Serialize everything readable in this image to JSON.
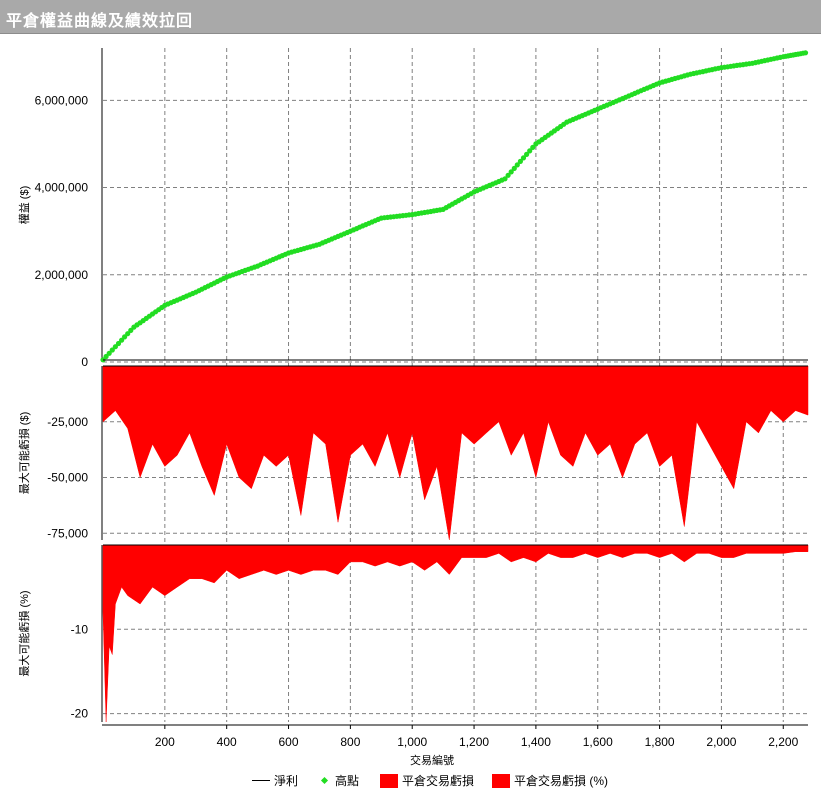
{
  "header": {
    "title": "平倉權益曲線及績效拉回"
  },
  "colors": {
    "highs": "#22dd22",
    "drawdown": "#ff0000",
    "grid": "#808080",
    "title_bg": "#a9a9a9"
  },
  "chart_data": [
    {
      "type": "line",
      "name": "equity",
      "ylabel": "權益 ($)",
      "ylim": [
        0,
        7200000
      ],
      "yticks": [
        "0",
        "2,000,000",
        "4,000,000",
        "6,000,000"
      ],
      "ytick_values": [
        0,
        2000000,
        4000000,
        6000000
      ],
      "series": [
        {
          "name": "淨利",
          "x": [
            0,
            100,
            200,
            300,
            400,
            500,
            600,
            700,
            800,
            900,
            1000,
            1100,
            1200,
            1300,
            1400,
            1500,
            1600,
            1700,
            1800,
            1900,
            2000,
            2100,
            2200,
            2280
          ],
          "values": [
            50000,
            800000,
            1300000,
            1600000,
            1950000,
            2200000,
            2500000,
            2700000,
            3000000,
            3300000,
            3380000,
            3500000,
            3900000,
            4200000,
            5000000,
            5500000,
            5800000,
            6100000,
            6400000,
            6600000,
            6750000,
            6850000,
            7000000,
            7100000
          ]
        },
        {
          "name": "高點"
        }
      ]
    },
    {
      "type": "area",
      "name": "dollar-drawdown",
      "ylabel": "最大可能虧損 ($)",
      "ylim": [
        -78000,
        0
      ],
      "yticks": [
        "-25,000",
        "-50,000",
        "-75,000"
      ],
      "ytick_values": [
        -25000,
        -50000,
        -75000
      ],
      "series": [
        {
          "name": "平倉交易虧損",
          "x": [
            0,
            40,
            80,
            120,
            160,
            200,
            240,
            280,
            320,
            360,
            400,
            440,
            480,
            520,
            560,
            600,
            640,
            680,
            720,
            760,
            800,
            840,
            880,
            920,
            960,
            1000,
            1040,
            1080,
            1120,
            1160,
            1200,
            1240,
            1280,
            1320,
            1360,
            1400,
            1440,
            1480,
            1520,
            1560,
            1600,
            1640,
            1680,
            1720,
            1760,
            1800,
            1840,
            1880,
            1920,
            1960,
            2000,
            2040,
            2080,
            2120,
            2160,
            2200,
            2240,
            2280
          ],
          "values": [
            -25000,
            -20000,
            -28000,
            -50000,
            -35000,
            -45000,
            -40000,
            -30000,
            -45000,
            -58000,
            -35000,
            -50000,
            -55000,
            -40000,
            -45000,
            -40000,
            -67000,
            -30000,
            -35000,
            -70000,
            -40000,
            -35000,
            -45000,
            -30000,
            -50000,
            -30000,
            -60000,
            -45000,
            -78000,
            -30000,
            -35000,
            -30000,
            -25000,
            -40000,
            -30000,
            -50000,
            -25000,
            -40000,
            -45000,
            -30000,
            -40000,
            -35000,
            -50000,
            -35000,
            -30000,
            -45000,
            -40000,
            -72000,
            -25000,
            -35000,
            -45000,
            -55000,
            -25000,
            -30000,
            -20000,
            -25000,
            -20000,
            -22000
          ]
        }
      ]
    },
    {
      "type": "area",
      "name": "percent-drawdown",
      "ylabel": "最大可能虧損 (%)",
      "ylim": [
        -21,
        0
      ],
      "yticks": [
        "-10",
        "-20"
      ],
      "ytick_values": [
        -10,
        -20
      ],
      "xlabel": "交易編號",
      "xlim": [
        0,
        2280
      ],
      "xticks": [
        "200",
        "400",
        "600",
        "800",
        "1,000",
        "1,200",
        "1,400",
        "1,600",
        "1,800",
        "2,000",
        "2,200"
      ],
      "xtick_values": [
        200,
        400,
        600,
        800,
        1000,
        1200,
        1400,
        1600,
        1800,
        2000,
        2200
      ],
      "series": [
        {
          "name": "平倉交易虧損 (%)",
          "x": [
            0,
            10,
            20,
            30,
            40,
            60,
            80,
            120,
            160,
            200,
            240,
            280,
            320,
            360,
            400,
            440,
            480,
            520,
            560,
            600,
            640,
            680,
            720,
            760,
            800,
            840,
            880,
            920,
            960,
            1000,
            1040,
            1080,
            1120,
            1160,
            1200,
            1240,
            1280,
            1320,
            1360,
            1400,
            1440,
            1480,
            1520,
            1560,
            1600,
            1640,
            1680,
            1720,
            1760,
            1800,
            1840,
            1880,
            1920,
            1960,
            2000,
            2040,
            2080,
            2120,
            2160,
            2200,
            2240,
            2280
          ],
          "values": [
            -8,
            -21,
            -12,
            -13,
            -7,
            -5,
            -6,
            -7,
            -5,
            -6,
            -5,
            -4,
            -4,
            -4.5,
            -3,
            -4,
            -3.5,
            -3,
            -3.5,
            -3,
            -3.5,
            -3,
            -3,
            -3.5,
            -2,
            -2,
            -2.5,
            -2,
            -2.5,
            -2,
            -3,
            -2,
            -3.5,
            -1.5,
            -1.5,
            -1.5,
            -1,
            -2,
            -1.5,
            -2,
            -1,
            -1.5,
            -1.5,
            -1,
            -1.5,
            -1,
            -1.5,
            -1,
            -1,
            -1.5,
            -1,
            -2,
            -1,
            -1,
            -1.5,
            -1.5,
            -1,
            -1,
            -1,
            -1,
            -0.8,
            -0.8
          ]
        }
      ]
    }
  ],
  "legend": {
    "items": [
      {
        "label": "淨利",
        "kind": "line"
      },
      {
        "label": "高點",
        "kind": "dot"
      },
      {
        "label": "平倉交易虧損",
        "kind": "box"
      },
      {
        "label": "平倉交易虧損 (%)",
        "kind": "box"
      }
    ]
  }
}
